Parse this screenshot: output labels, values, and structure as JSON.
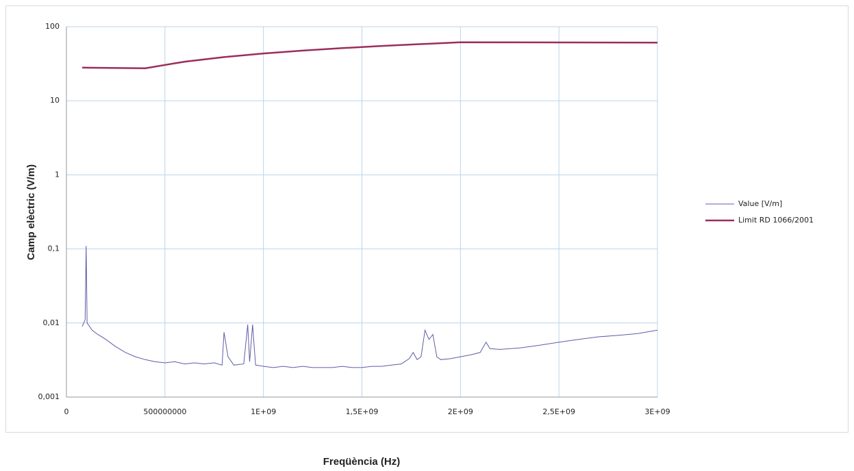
{
  "chart_data": {
    "type": "line",
    "x_label": "Freqüència (Hz)",
    "y_label": "Camp elèctric (V/m)",
    "xlim": [
      0,
      3000000000
    ],
    "ylim": [
      0.001,
      100
    ],
    "y_log": true,
    "grid": true,
    "legend": "right",
    "xticks": [
      0,
      500000000,
      {
        "value": 1000000000,
        "label": "1E+09"
      },
      {
        "value": 1500000000,
        "label": "1,5E+09"
      },
      {
        "value": 2000000000,
        "label": "2E+09"
      },
      {
        "value": 2500000000,
        "label": "2,5E+09"
      },
      {
        "value": 3000000000,
        "label": "3E+09"
      }
    ],
    "yticks": [
      {
        "value": 0.001,
        "label": "0,001"
      },
      {
        "value": 0.01,
        "label": "0,01"
      },
      {
        "value": 0.1,
        "label": "0,1"
      },
      1,
      10,
      100
    ],
    "series": [
      {
        "name": "Value [V/m]",
        "color": "#5c5ca8",
        "width": 1,
        "x": [
          80000000,
          95000000,
          100000000,
          105000000,
          130000000,
          160000000,
          200000000,
          250000000,
          300000000,
          350000000,
          400000000,
          450000000,
          500000000,
          550000000,
          600000000,
          650000000,
          700000000,
          750000000,
          790000000,
          800000000,
          820000000,
          850000000,
          900000000,
          920000000,
          930000000,
          945000000,
          960000000,
          1000000000,
          1050000000,
          1100000000,
          1150000000,
          1200000000,
          1250000000,
          1300000000,
          1350000000,
          1400000000,
          1450000000,
          1500000000,
          1550000000,
          1600000000,
          1650000000,
          1700000000,
          1740000000,
          1760000000,
          1780000000,
          1800000000,
          1820000000,
          1840000000,
          1860000000,
          1880000000,
          1900000000,
          1950000000,
          2000000000,
          2050000000,
          2100000000,
          2130000000,
          2150000000,
          2200000000,
          2300000000,
          2400000000,
          2500000000,
          2600000000,
          2700000000,
          2800000000,
          2900000000,
          3000000000
        ],
        "values": [
          0.009,
          0.011,
          0.11,
          0.01,
          0.008,
          0.007,
          0.006,
          0.0048,
          0.004,
          0.0035,
          0.0032,
          0.003,
          0.0029,
          0.003,
          0.0028,
          0.0029,
          0.0028,
          0.0029,
          0.0027,
          0.0075,
          0.0035,
          0.0027,
          0.0028,
          0.0095,
          0.003,
          0.0095,
          0.0027,
          0.0026,
          0.0025,
          0.0026,
          0.0025,
          0.0026,
          0.0025,
          0.0025,
          0.0025,
          0.0026,
          0.0025,
          0.0025,
          0.0026,
          0.0026,
          0.0027,
          0.0028,
          0.0033,
          0.004,
          0.0032,
          0.0035,
          0.008,
          0.006,
          0.007,
          0.0035,
          0.0032,
          0.0033,
          0.0035,
          0.0037,
          0.004,
          0.0055,
          0.0045,
          0.0044,
          0.0046,
          0.005,
          0.0055,
          0.006,
          0.0065,
          0.0068,
          0.0072,
          0.008
        ]
      },
      {
        "name": "Limit RD 1066/2001",
        "color": "#9b2d5b",
        "width": 2.5,
        "x": [
          80000000,
          400000000,
          600000000,
          800000000,
          1000000000,
          1200000000,
          1400000000,
          1600000000,
          1800000000,
          2000000000,
          3000000000
        ],
        "values": [
          28,
          27.5,
          33.7,
          38.9,
          43.5,
          47.6,
          51.4,
          55,
          58.3,
          61.5,
          61
        ]
      }
    ]
  }
}
